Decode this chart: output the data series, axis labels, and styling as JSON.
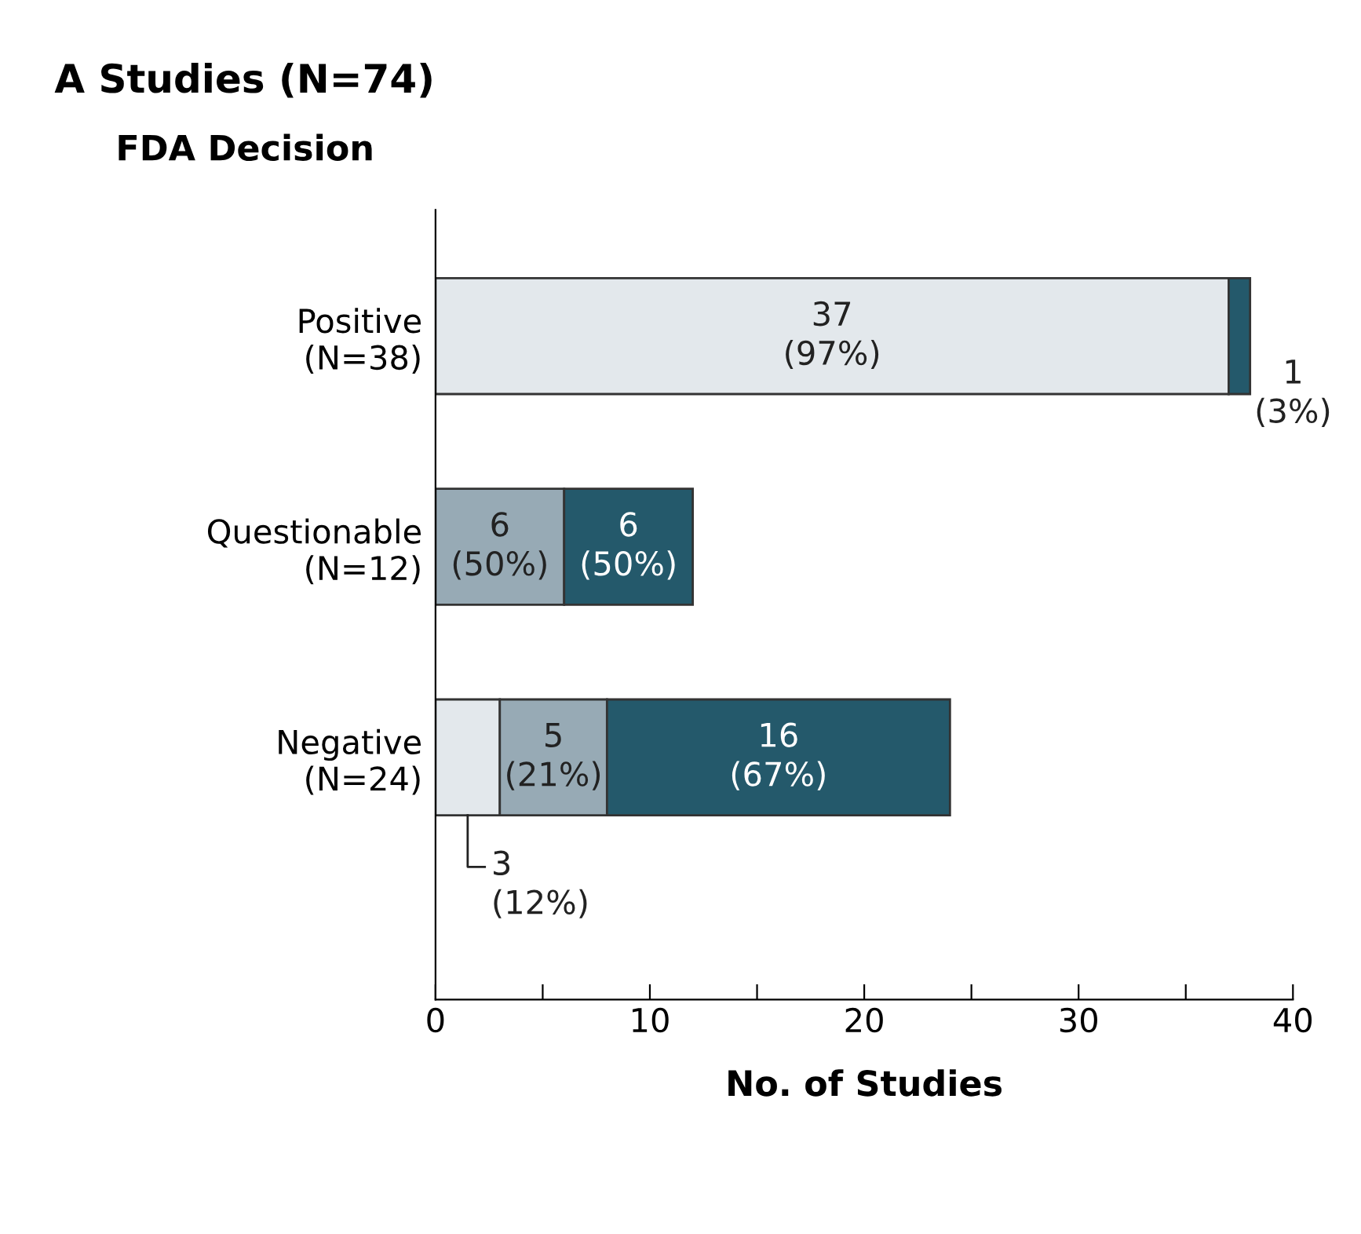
{
  "chart_data": {
    "type": "bar",
    "orientation": "horizontal",
    "stacked": true,
    "title": "A Studies (N=74)",
    "subtitle": "FDA Decision",
    "xlabel": "No. of Studies",
    "categories": [
      "Positive\n(N=38)",
      "Questionable\n(N=12)",
      "Negative\n(N=24)"
    ],
    "series": [
      {
        "color": "#e3e8ec",
        "values": [
          37,
          null,
          3
        ],
        "value_labels": [
          "37\n(97%)",
          null,
          "3\n(12%)"
        ]
      },
      {
        "color": "#97aab5",
        "values": [
          null,
          6,
          5
        ],
        "value_labels": [
          null,
          "6\n(50%)",
          "5\n(21%)"
        ]
      },
      {
        "color": "#24596b",
        "values": [
          1,
          6,
          16
        ],
        "value_labels": [
          "1\n(3%)",
          "6\n(50%)",
          "16\n(67%)"
        ]
      }
    ],
    "xlim": [
      0,
      40
    ],
    "xticks": [
      0,
      {
        "value": 5,
        "label": null
      },
      10,
      {
        "value": 15,
        "label": null
      },
      20,
      {
        "value": 25,
        "label": null
      },
      30,
      {
        "value": 35,
        "label": null
      },
      40
    ],
    "grid": false
  }
}
